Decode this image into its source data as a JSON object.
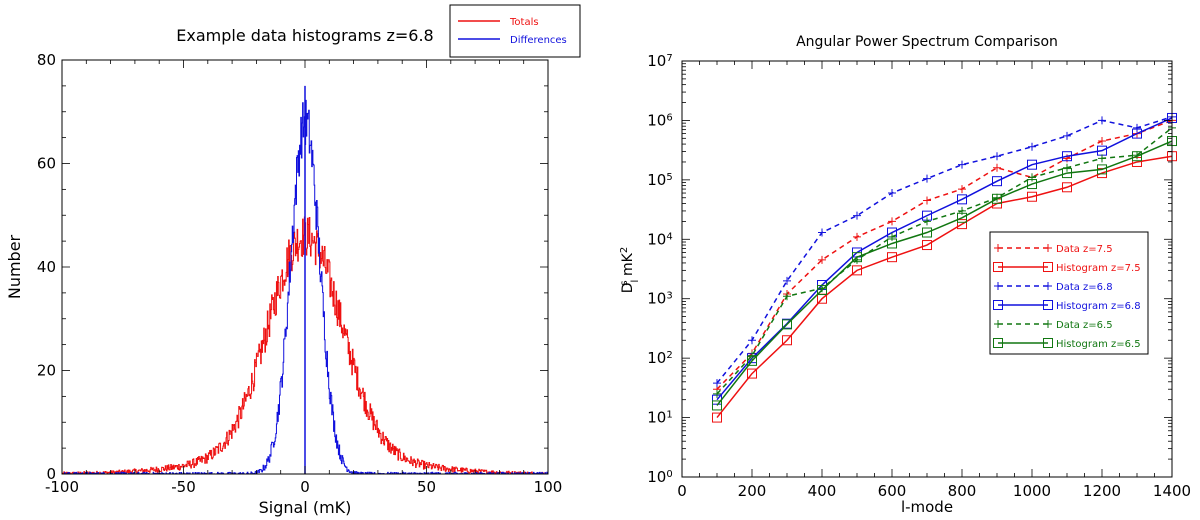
{
  "colors": {
    "red": "#ee1111",
    "blue": "#1111dd",
    "green": "#117711",
    "black": "#000000"
  },
  "chart_data": [
    {
      "type": "line",
      "title": "Example data histograms z=6.8",
      "xlabel": "Signal (mK)",
      "ylabel": "Number",
      "xlim": [
        -100,
        100
      ],
      "ylim": [
        0,
        80
      ],
      "xticks": [
        "-100",
        "-50",
        "0",
        "50",
        "100"
      ],
      "yticks": [
        "0",
        "20",
        "40",
        "60",
        "80"
      ],
      "legend": {
        "placement": "top-right",
        "entries": [
          "Totals",
          "Differences"
        ]
      },
      "series": [
        {
          "name": "Totals",
          "color": "red",
          "shape": "gaussian",
          "mean": 0,
          "sigma": 15,
          "peak": 42,
          "noise": 4
        },
        {
          "name": "Differences",
          "color": "blue",
          "shape": "gaussian",
          "mean": 0,
          "sigma": 6,
          "peak": 68,
          "noise": 5
        }
      ]
    },
    {
      "type": "line",
      "title": "Angular Power Spectrum Comparison",
      "xlabel": "l-mode",
      "ylabel": "D_l^s mK^2",
      "xlim": [
        0,
        1400
      ],
      "ylim": [
        1,
        10000000
      ],
      "yscale": "log",
      "xticks": [
        "0",
        "200",
        "400",
        "600",
        "800",
        "1000",
        "1200",
        "1400"
      ],
      "yticks": [
        "10^0",
        "10^1",
        "10^2",
        "10^3",
        "10^4",
        "10^5",
        "10^6",
        "10^7"
      ],
      "legend": {
        "placement": "center-right",
        "entries": [
          "Data z=7.5",
          "Histogram z=7.5",
          "Data z=6.8",
          "Histogram z=6.8",
          "Data z=6.5",
          "Histogram z=6.5"
        ]
      },
      "x": [
        100,
        200,
        300,
        400,
        500,
        600,
        700,
        800,
        900,
        1000,
        1100,
        1200,
        1300,
        1400
      ],
      "series": [
        {
          "name": "Data z=7.5",
          "color": "red",
          "dash": true,
          "marker": "plus",
          "values": [
            30,
            120,
            1200,
            4500,
            11000,
            20000,
            45000,
            70000,
            160000,
            110000,
            230000,
            450000,
            600000,
            1000000
          ]
        },
        {
          "name": "Histogram z=7.5",
          "color": "red",
          "dash": false,
          "marker": "square",
          "values": [
            10,
            55,
            200,
            1000,
            3000,
            5000,
            8000,
            18000,
            40000,
            52000,
            75000,
            130000,
            200000,
            250000
          ]
        },
        {
          "name": "Data z=6.8",
          "color": "blue",
          "dash": true,
          "marker": "plus",
          "values": [
            38,
            200,
            2000,
            13000,
            25000,
            60000,
            105000,
            180000,
            250000,
            360000,
            550000,
            1000000,
            750000,
            1150000
          ]
        },
        {
          "name": "Histogram z=6.8",
          "color": "blue",
          "dash": false,
          "marker": "square",
          "values": [
            20,
            100,
            380,
            1700,
            6000,
            13000,
            25000,
            47000,
            95000,
            180000,
            250000,
            310000,
            600000,
            1100000
          ]
        },
        {
          "name": "Data z=6.5",
          "color": "green",
          "dash": true,
          "marker": "plus",
          "values": [
            25,
            110,
            1100,
            1500,
            4500,
            11000,
            20000,
            30000,
            50000,
            110000,
            160000,
            230000,
            260000,
            750000
          ]
        },
        {
          "name": "Histogram z=6.5",
          "color": "green",
          "dash": false,
          "marker": "square",
          "values": [
            16,
            90,
            370,
            1400,
            5000,
            8500,
            13000,
            23000,
            48000,
            85000,
            130000,
            150000,
            250000,
            450000
          ]
        }
      ]
    }
  ]
}
